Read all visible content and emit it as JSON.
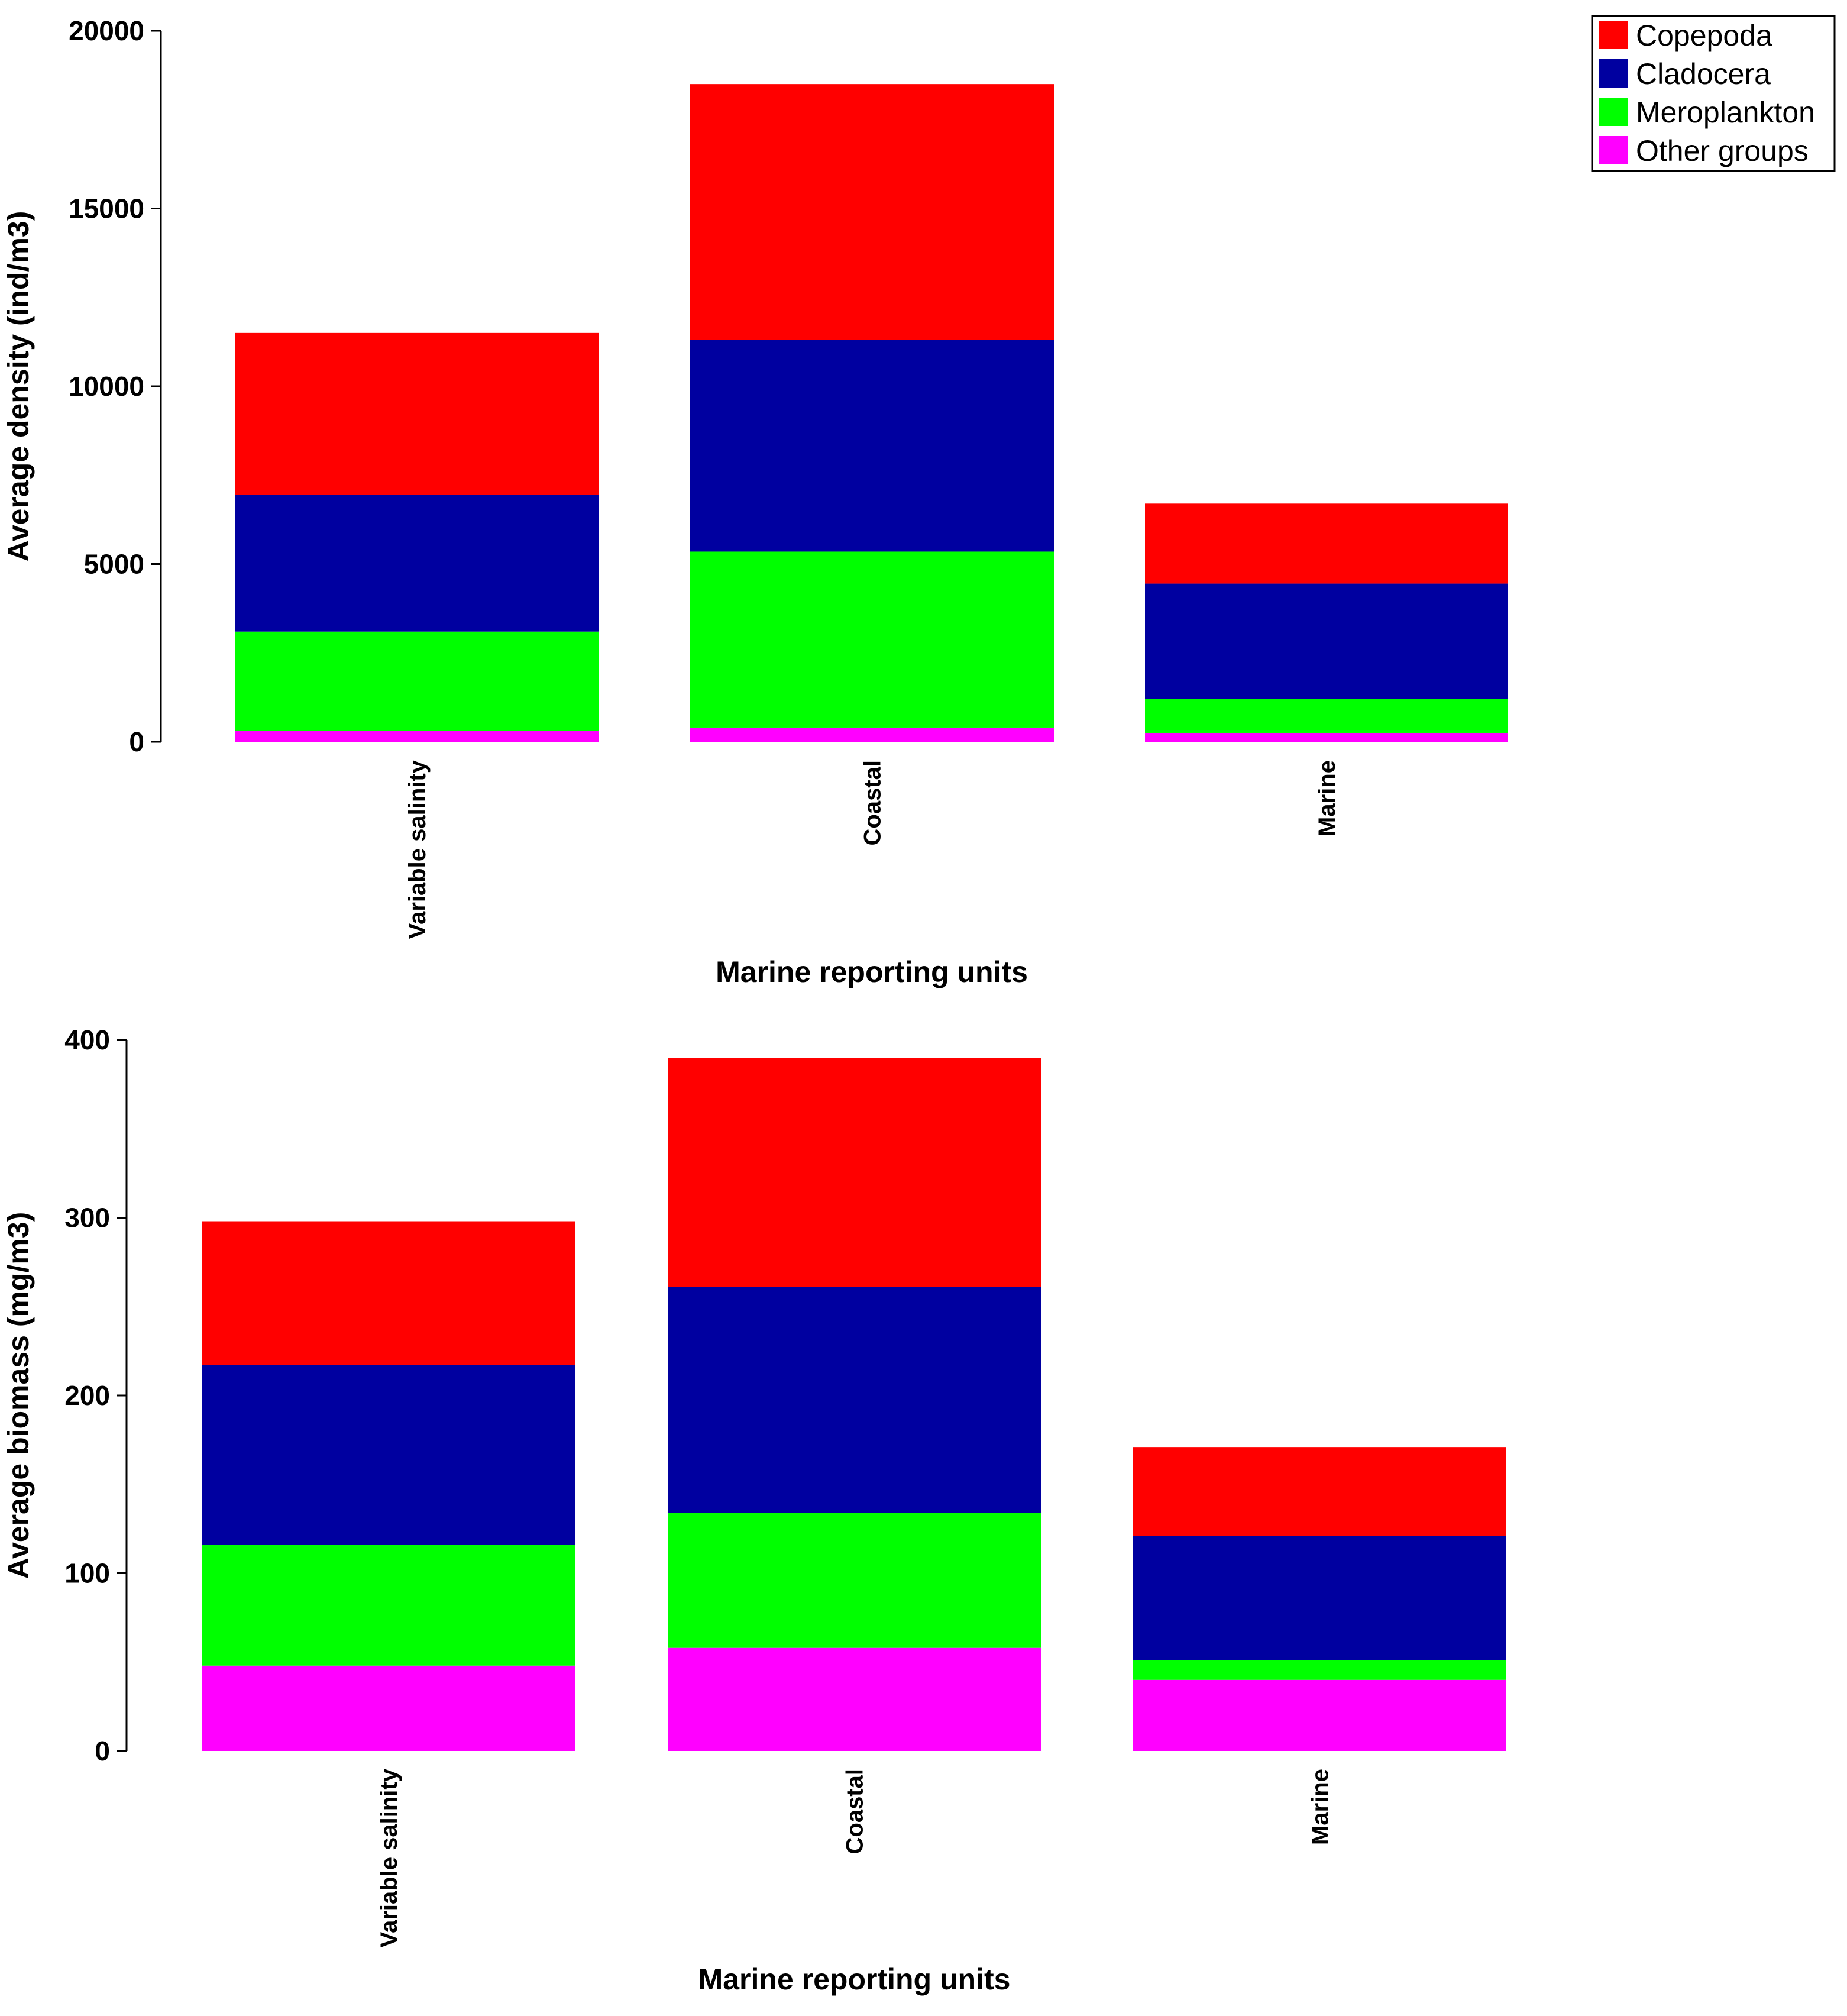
{
  "chart_data": [
    {
      "type": "bar",
      "stacked": true,
      "title": "",
      "xlabel": "Marine reporting units",
      "ylabel": "Average density (ind/m3)",
      "categories": [
        "Variable salinity",
        "Coastal",
        "Marine"
      ],
      "ylim": [
        0,
        20000
      ],
      "yticks": [
        0,
        5000,
        10000,
        15000,
        20000
      ],
      "series": [
        {
          "name": "Other groups",
          "color": "#ff00ff",
          "values": [
            300,
            400,
            250
          ]
        },
        {
          "name": "Meroplankton",
          "color": "#00ff00",
          "values": [
            2800,
            4950,
            950
          ]
        },
        {
          "name": "Cladocera",
          "color": "#0000a0",
          "values": [
            3850,
            5950,
            3250
          ]
        },
        {
          "name": "Copepoda",
          "color": "#ff0000",
          "values": [
            4550,
            7200,
            2250
          ]
        }
      ],
      "grid": false,
      "legend": {
        "position": "top-right",
        "entries": [
          {
            "label": "Copepoda",
            "color": "#ff0000"
          },
          {
            "label": "Cladocera",
            "color": "#0000a0"
          },
          {
            "label": "Meroplankton",
            "color": "#00ff00"
          },
          {
            "label": "Other groups",
            "color": "#ff00ff"
          }
        ]
      }
    },
    {
      "type": "bar",
      "stacked": true,
      "title": "",
      "xlabel": "Marine reporting units",
      "ylabel": "Average biomass (mg/m3)",
      "categories": [
        "Variable salinity",
        "Coastal",
        "Marine"
      ],
      "ylim": [
        0,
        400
      ],
      "yticks": [
        0,
        100,
        200,
        300,
        400
      ],
      "series": [
        {
          "name": "Other groups",
          "color": "#ff00ff",
          "values": [
            48,
            58,
            40
          ]
        },
        {
          "name": "Meroplankton",
          "color": "#00ff00",
          "values": [
            68,
            76,
            11
          ]
        },
        {
          "name": "Cladocera",
          "color": "#0000a0",
          "values": [
            101,
            127,
            70
          ]
        },
        {
          "name": "Copepoda",
          "color": "#ff0000",
          "values": [
            81,
            129,
            50
          ]
        }
      ],
      "grid": false
    }
  ]
}
